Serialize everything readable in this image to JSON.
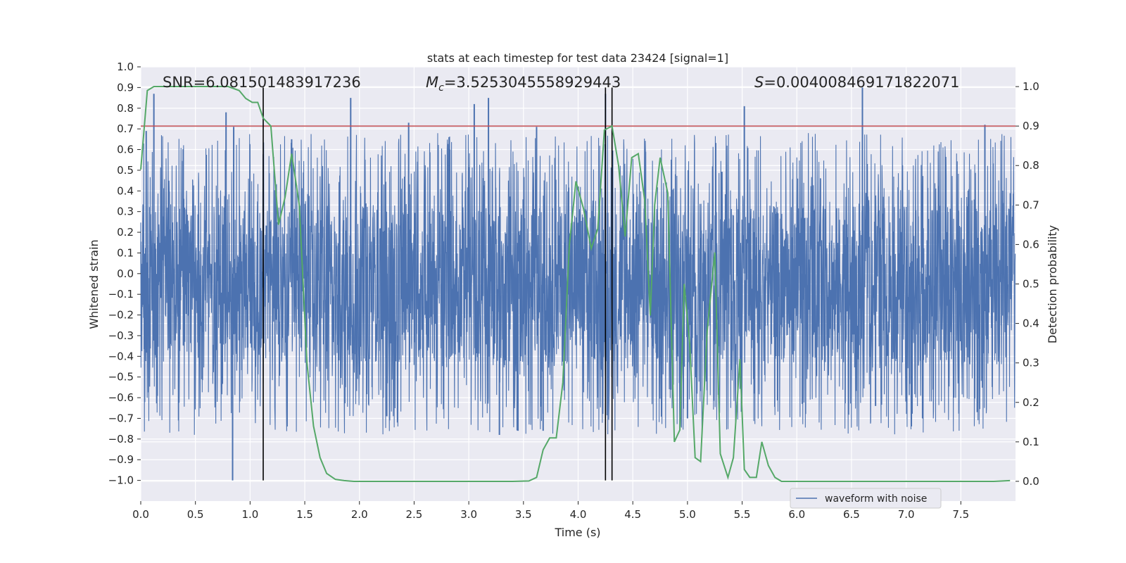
{
  "chart_data": {
    "type": "line",
    "title": "stats at each timestep for test data 23424 [signal=1]",
    "xlabel": "Time (s)",
    "ylabel_left": "Whitened strain",
    "ylabel_right": "Detection probability",
    "xlim": [
      0.0,
      8.0
    ],
    "ylim_left": [
      -1.1,
      1.0
    ],
    "ylim_right": [
      -0.05,
      1.05
    ],
    "x_ticks": [
      "0.0",
      "0.5",
      "1.0",
      "1.5",
      "2.0",
      "2.5",
      "3.0",
      "3.5",
      "4.0",
      "4.5",
      "5.0",
      "5.5",
      "6.0",
      "6.5",
      "7.0",
      "7.5"
    ],
    "y_ticks_left": [
      "1.0",
      "0.9",
      "0.8",
      "0.7",
      "0.6",
      "0.5",
      "0.4",
      "0.3",
      "0.2",
      "0.1",
      "0.0",
      "−0.1",
      "−0.2",
      "−0.3",
      "−0.4",
      "−0.5",
      "−0.6",
      "−0.7",
      "−0.8",
      "−0.9",
      "−1.0"
    ],
    "y_ticks_right": [
      "1.0",
      "0.9",
      "0.8",
      "0.7",
      "0.6",
      "0.5",
      "0.4",
      "0.3",
      "0.2",
      "0.1",
      "0.0"
    ],
    "grid": true,
    "legend_position": "lower-right",
    "annotations": {
      "snr": "SNR=6.081501483917236",
      "mc_symbol": "M",
      "mc_sub": "c",
      "mc_value": "=3.5253045558929443",
      "s_symbol": "S",
      "s_value": "=0.004008469171822071"
    },
    "threshold": {
      "axis": "right",
      "value": 0.9,
      "color": "#c44e52"
    },
    "vlines": [
      1.12,
      4.25,
      4.31
    ],
    "series": [
      {
        "name": "waveform with noise",
        "axis": "left",
        "color": "#4c72b0",
        "style": "noise",
        "band": [
          -0.43,
          0.33
        ],
        "envelope": [
          0.68,
          -0.78
        ],
        "spikes_up": [
          [
            0.05,
            0.69
          ],
          [
            0.12,
            0.87
          ],
          [
            0.78,
            0.78
          ],
          [
            0.85,
            0.71
          ],
          [
            1.38,
            0.65
          ],
          [
            1.92,
            0.85
          ],
          [
            2.45,
            0.73
          ],
          [
            2.82,
            0.66
          ],
          [
            3.05,
            0.82
          ],
          [
            3.18,
            0.85
          ],
          [
            3.62,
            0.71
          ],
          [
            4.25,
            0.87
          ],
          [
            5.52,
            0.81
          ],
          [
            6.6,
            0.9
          ],
          [
            7.72,
            0.72
          ]
        ],
        "spikes_down": [
          [
            0.84,
            -1.0
          ],
          [
            2.25,
            -0.69
          ],
          [
            3.45,
            -0.76
          ],
          [
            3.68,
            -0.76
          ],
          [
            3.28,
            -0.78
          ],
          [
            5.0,
            -0.7
          ],
          [
            6.05,
            -0.63
          ],
          [
            6.72,
            -0.64
          ],
          [
            7.15,
            -0.7
          ],
          [
            7.65,
            -0.67
          ]
        ]
      },
      {
        "name": "Detection probability",
        "axis": "right",
        "color": "#55a868",
        "style": "line",
        "x": [
          0.0,
          0.06,
          0.12,
          0.2,
          0.3,
          0.4,
          0.5,
          0.6,
          0.7,
          0.8,
          0.9,
          0.96,
          1.02,
          1.07,
          1.12,
          1.19,
          1.26,
          1.32,
          1.38,
          1.45,
          1.52,
          1.58,
          1.64,
          1.7,
          1.78,
          1.86,
          1.95,
          2.05,
          2.2,
          2.4,
          2.6,
          2.8,
          3.0,
          3.2,
          3.4,
          3.55,
          3.62,
          3.68,
          3.74,
          3.8,
          3.86,
          3.92,
          3.98,
          4.05,
          4.12,
          4.18,
          4.24,
          4.31,
          4.37,
          4.43,
          4.49,
          4.55,
          4.61,
          4.66,
          4.7,
          4.75,
          4.82,
          4.88,
          4.93,
          4.97,
          5.02,
          5.07,
          5.12,
          5.18,
          5.25,
          5.3,
          5.37,
          5.42,
          5.48,
          5.52,
          5.57,
          5.63,
          5.68,
          5.74,
          5.8,
          5.86,
          5.92,
          5.98,
          6.05,
          6.2,
          6.4,
          6.6,
          6.8,
          7.0,
          7.2,
          7.4,
          7.6,
          7.8,
          7.95
        ],
        "values": [
          0.79,
          0.99,
          1.0,
          1.0,
          1.0,
          1.0,
          1.0,
          1.0,
          1.0,
          1.0,
          0.99,
          0.97,
          0.96,
          0.96,
          0.92,
          0.9,
          0.65,
          0.72,
          0.83,
          0.7,
          0.3,
          0.14,
          0.06,
          0.02,
          0.005,
          0.002,
          0.0,
          0.0,
          0.0,
          0.0,
          0.0,
          0.0,
          0.0,
          0.0,
          0.0,
          0.001,
          0.01,
          0.08,
          0.11,
          0.11,
          0.25,
          0.6,
          0.76,
          0.69,
          0.59,
          0.64,
          0.89,
          0.9,
          0.8,
          0.62,
          0.82,
          0.83,
          0.71,
          0.42,
          0.7,
          0.82,
          0.73,
          0.1,
          0.13,
          0.5,
          0.35,
          0.06,
          0.05,
          0.38,
          0.58,
          0.07,
          0.01,
          0.06,
          0.31,
          0.03,
          0.01,
          0.01,
          0.1,
          0.04,
          0.01,
          0.0,
          0.0,
          0.0,
          0.0,
          0.0,
          0.0,
          0.0,
          0.0,
          0.0,
          0.0,
          0.0,
          0.0,
          0.0,
          0.002
        ]
      }
    ]
  }
}
